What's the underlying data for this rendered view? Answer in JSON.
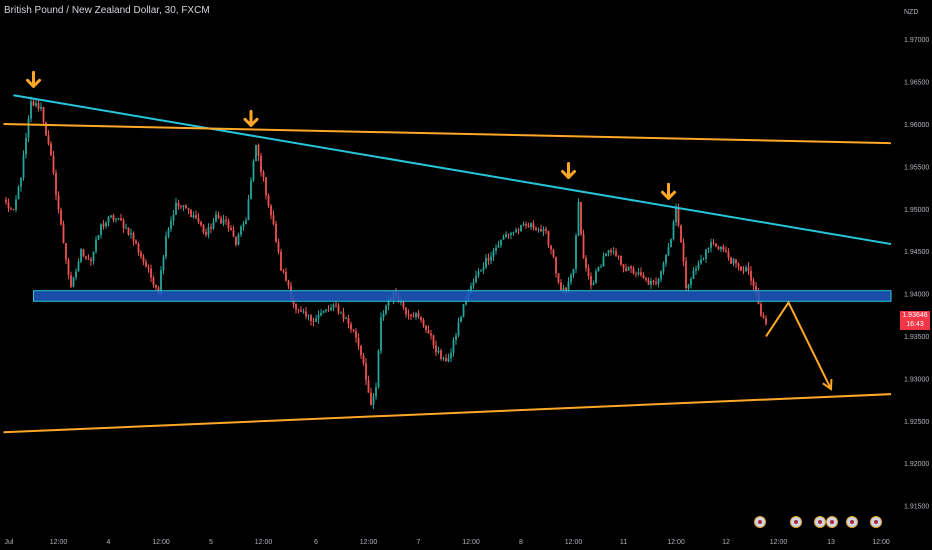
{
  "header": {
    "title": "British Pound / New Zealand Dollar, 30, FXCM"
  },
  "price_badge": {
    "price": "1.93646",
    "countdown": "16:43",
    "color": "#f23645"
  },
  "event_icons": [
    "flag-icon",
    "flag-icon",
    "flag-icon",
    "flag-icon",
    "flag-icon",
    "flag-icon"
  ],
  "chart_data": {
    "type": "candlestick",
    "symbol": "British Pound / New Zealand Dollar, 30, FXCM",
    "currency_label": "NZD",
    "ylim": [
      1.911,
      1.9735
    ],
    "y_ticks": [
      "1.97000",
      "1.96500",
      "1.96000",
      "1.95500",
      "1.95000",
      "1.94500",
      "1.94000",
      "1.93500",
      "1.93000",
      "1.92500",
      "1.92000",
      "1.91500"
    ],
    "x_ticks": [
      "Jul",
      "12:00",
      "4",
      "12:00",
      "5",
      "12:00",
      "6",
      "12:00",
      "7",
      "12:00",
      "8",
      "12:00",
      "11",
      "12:00",
      "12",
      "12:00",
      "13",
      "12:00"
    ],
    "x_tick_index": [
      0,
      21,
      41,
      62,
      82,
      103,
      124,
      145,
      165,
      186,
      206,
      227,
      247,
      268,
      288,
      309,
      330,
      350
    ],
    "candle_count": 305,
    "anchors": [
      [
        0,
        1.9507
      ],
      [
        3,
        1.9495
      ],
      [
        6,
        1.954
      ],
      [
        10,
        1.9625
      ],
      [
        14,
        1.962
      ],
      [
        18,
        1.956
      ],
      [
        22,
        1.948
      ],
      [
        26,
        1.9405
      ],
      [
        30,
        1.945
      ],
      [
        34,
        1.944
      ],
      [
        38,
        1.948
      ],
      [
        42,
        1.949
      ],
      [
        46,
        1.9485
      ],
      [
        50,
        1.947
      ],
      [
        54,
        1.9445
      ],
      [
        58,
        1.942
      ],
      [
        61,
        1.9405
      ],
      [
        64,
        1.947
      ],
      [
        68,
        1.9505
      ],
      [
        72,
        1.95
      ],
      [
        76,
        1.949
      ],
      [
        80,
        1.947
      ],
      [
        84,
        1.949
      ],
      [
        88,
        1.9485
      ],
      [
        92,
        1.946
      ],
      [
        96,
        1.949
      ],
      [
        100,
        1.9575
      ],
      [
        104,
        1.952
      ],
      [
        107,
        1.948
      ],
      [
        110,
        1.943
      ],
      [
        113,
        1.941
      ],
      [
        116,
        1.938
      ],
      [
        119,
        1.9375
      ],
      [
        122,
        1.937
      ],
      [
        125,
        1.9375
      ],
      [
        128,
        1.938
      ],
      [
        132,
        1.9385
      ],
      [
        136,
        1.937
      ],
      [
        140,
        1.935
      ],
      [
        143,
        1.932
      ],
      [
        146,
        1.9265
      ],
      [
        148,
        1.929
      ],
      [
        150,
        1.937
      ],
      [
        153,
        1.9395
      ],
      [
        156,
        1.94
      ],
      [
        160,
        1.938
      ],
      [
        164,
        1.9375
      ],
      [
        168,
        1.936
      ],
      [
        172,
        1.9335
      ],
      [
        175,
        1.932
      ],
      [
        178,
        1.933
      ],
      [
        181,
        1.9365
      ],
      [
        184,
        1.9395
      ],
      [
        188,
        1.942
      ],
      [
        192,
        1.944
      ],
      [
        196,
        1.9455
      ],
      [
        200,
        1.947
      ],
      [
        204,
        1.9475
      ],
      [
        208,
        1.948
      ],
      [
        212,
        1.948
      ],
      [
        216,
        1.947
      ],
      [
        219,
        1.9445
      ],
      [
        221,
        1.941
      ],
      [
        224,
        1.94
      ],
      [
        227,
        1.943
      ],
      [
        229,
        1.9505
      ],
      [
        231,
        1.944
      ],
      [
        234,
        1.941
      ],
      [
        237,
        1.943
      ],
      [
        240,
        1.945
      ],
      [
        244,
        1.9445
      ],
      [
        248,
        1.943
      ],
      [
        252,
        1.9425
      ],
      [
        256,
        1.9415
      ],
      [
        260,
        1.941
      ],
      [
        263,
        1.944
      ],
      [
        266,
        1.9465
      ],
      [
        268,
        1.9505
      ],
      [
        270,
        1.946
      ],
      [
        272,
        1.941
      ],
      [
        275,
        1.9425
      ],
      [
        278,
        1.944
      ],
      [
        282,
        1.946
      ],
      [
        286,
        1.9455
      ],
      [
        290,
        1.944
      ],
      [
        293,
        1.943
      ],
      [
        296,
        1.943
      ],
      [
        299,
        1.941
      ],
      [
        302,
        1.9375
      ],
      [
        304,
        1.93646
      ]
    ],
    "lines": [
      {
        "name": "upper-trendline",
        "color": "#26c6da",
        "from": [
          3,
          1.96345
        ],
        "to": [
          354,
          1.9459
        ]
      },
      {
        "name": "horizontal-resistance",
        "color": "#ffa726",
        "from": [
          -1,
          1.96005
        ],
        "to": [
          354,
          1.9578
        ]
      },
      {
        "name": "lower-trendline",
        "color": "#ffa726",
        "from": [
          -1,
          1.9237
        ],
        "to": [
          354,
          1.9282
        ]
      }
    ],
    "zone": {
      "name": "support-zone",
      "color": "#1e5bc6",
      "border": "#26c6da",
      "x_range": [
        11,
        354
      ],
      "y_range": [
        1.93915,
        1.9404
      ]
    },
    "projection": {
      "name": "projection-path",
      "color": "#ffa726",
      "points": [
        [
          304,
          1.935
        ],
        [
          313,
          1.939
        ],
        [
          330,
          1.9288
        ]
      ]
    },
    "markers": [
      {
        "name": "peak-arrow",
        "x": 11,
        "y": 1.9645
      },
      {
        "name": "peak-arrow",
        "x": 98,
        "y": 1.9599
      },
      {
        "name": "peak-arrow",
        "x": 225,
        "y": 1.95375
      },
      {
        "name": "peak-arrow",
        "x": 265,
        "y": 1.9513
      }
    ],
    "colors": {
      "up": "#26a69a",
      "down": "#ef5350",
      "axis_text": "#b2b5be"
    }
  }
}
